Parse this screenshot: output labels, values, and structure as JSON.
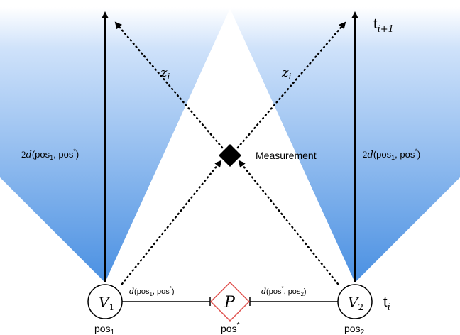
{
  "labels": {
    "time_next": "t",
    "time_next_sub": "i+1",
    "time_now": "t",
    "time_now_sub": "i",
    "z_left": "z",
    "z_left_sub": "i",
    "z_right": "z",
    "z_right_sub": "i",
    "measurement": "Measurement",
    "dist_left_prefix": "2",
    "dist_left_d": "d",
    "dist_left_args": "(pos",
    "dist_left_sub1": "1",
    "dist_left_mid": ", pos",
    "dist_left_sup": "*",
    "dist_left_close": ")",
    "dist_right_prefix": "2",
    "dist_right_d": "d",
    "dist_right_args": "(pos",
    "dist_right_sub1": "1",
    "dist_right_mid": ", pos",
    "dist_right_sup": "*",
    "dist_right_close": ")",
    "edge_left_d": "d",
    "edge_left_open": "(pos",
    "edge_left_sub": "1",
    "edge_left_mid": ", pos",
    "edge_left_sup": "*",
    "edge_left_close": ")",
    "edge_right_d": "d",
    "edge_right_open": "(pos",
    "edge_right_sup": "*",
    "edge_right_mid": ", pos",
    "edge_right_sub": "2",
    "edge_right_close": ")"
  },
  "nodes": {
    "v1_main": "V",
    "v1_sub": "1",
    "v2_main": "V",
    "v2_sub": "2",
    "p_main": "P",
    "pos1": "pos",
    "pos1_sub": "1",
    "pos2": "pos",
    "pos2_sub": "2",
    "posstar": "pos",
    "posstar_sup": "*"
  },
  "colors": {
    "cone_top": "#b7d5f7",
    "cone_bottom": "#4a90e2",
    "p_border": "#e0504d",
    "ink": "#000000"
  }
}
